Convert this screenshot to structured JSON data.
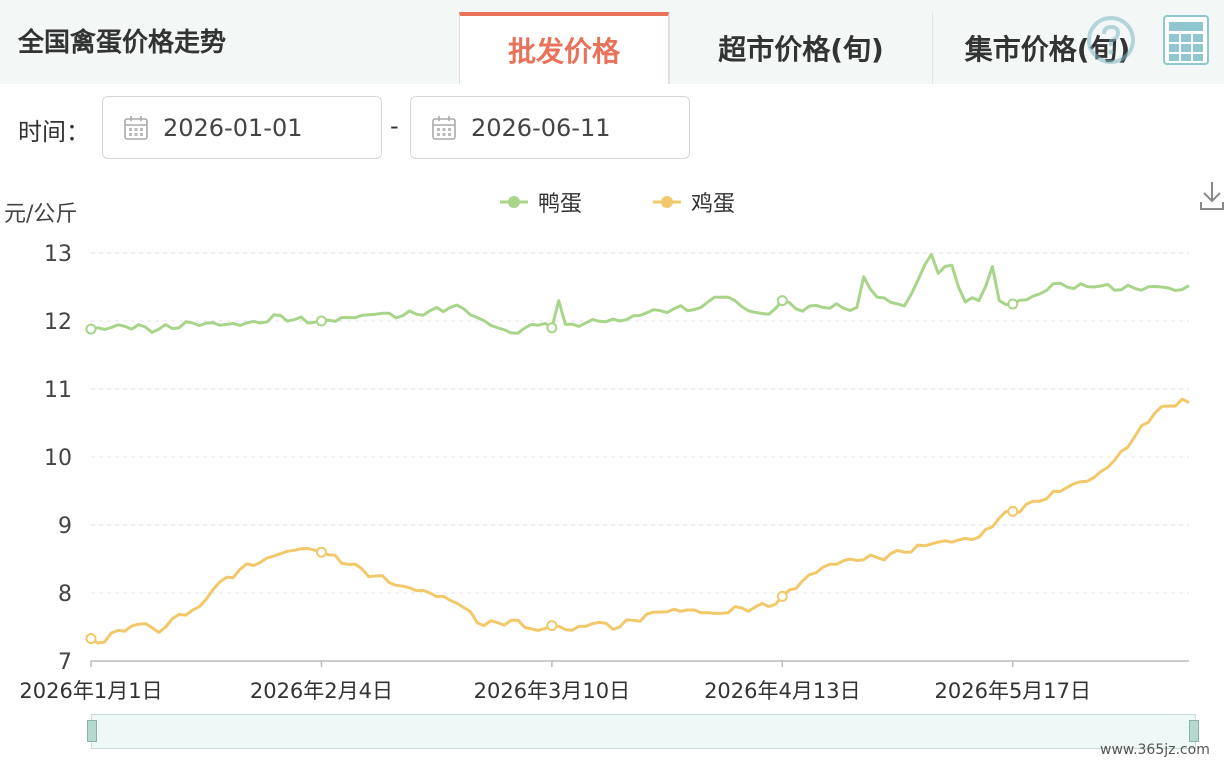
{
  "header": {
    "title": "全国禽蛋价格走势",
    "tabs": [
      {
        "label": "批发价格",
        "active": true
      },
      {
        "label": "超市价格(旬)",
        "active": false
      },
      {
        "label": "集市价格(旬)",
        "active": false
      }
    ],
    "icons": [
      "help-icon",
      "table-icon"
    ]
  },
  "filters": {
    "time_label": "时间：",
    "start_date": "2026-01-01",
    "separator": "-",
    "end_date": "2026-06-11"
  },
  "watermark": "www.365jz.com",
  "colors": {
    "accent": "#e8735a",
    "duck": "#a8d58a",
    "chicken": "#f2c96a",
    "grid": "#e3e3e3"
  },
  "chart_data": {
    "type": "line",
    "ylabel": "元/公斤",
    "ylim": [
      7,
      13
    ],
    "yticks": [
      "7",
      "8",
      "9",
      "10",
      "11",
      "12",
      "13"
    ],
    "x_tick_labels": [
      "2026年1月1日",
      "2026年2月4日",
      "2026年3月10日",
      "2026年4月13日",
      "2026年5月17日"
    ],
    "x_tick_index": [
      0,
      34,
      68,
      102,
      136
    ],
    "num_points": 163,
    "legend_position": "top-center",
    "series": [
      {
        "name": "鸭蛋",
        "color": "#a8d58a",
        "anchors": [
          [
            0,
            11.88
          ],
          [
            5,
            11.92
          ],
          [
            10,
            11.88
          ],
          [
            15,
            11.97
          ],
          [
            20,
            11.95
          ],
          [
            25,
            11.97
          ],
          [
            28,
            12.08
          ],
          [
            30,
            12.02
          ],
          [
            34,
            12.0
          ],
          [
            38,
            12.05
          ],
          [
            42,
            12.1
          ],
          [
            46,
            12.08
          ],
          [
            50,
            12.15
          ],
          [
            53,
            12.2
          ],
          [
            55,
            12.18
          ],
          [
            57,
            12.05
          ],
          [
            60,
            11.9
          ],
          [
            63,
            11.82
          ],
          [
            65,
            11.95
          ],
          [
            68,
            11.9
          ],
          [
            69,
            12.3
          ],
          [
            70,
            11.95
          ],
          [
            72,
            11.92
          ],
          [
            74,
            12.02
          ],
          [
            78,
            12.0
          ],
          [
            82,
            12.12
          ],
          [
            86,
            12.18
          ],
          [
            90,
            12.2
          ],
          [
            92,
            12.35
          ],
          [
            95,
            12.3
          ],
          [
            97,
            12.15
          ],
          [
            100,
            12.1
          ],
          [
            102,
            12.3
          ],
          [
            104,
            12.18
          ],
          [
            108,
            12.2
          ],
          [
            113,
            12.2
          ],
          [
            114,
            12.65
          ],
          [
            116,
            12.35
          ],
          [
            120,
            12.22
          ],
          [
            124,
            12.98
          ],
          [
            125,
            12.7
          ],
          [
            127,
            12.82
          ],
          [
            129,
            12.28
          ],
          [
            131,
            12.3
          ],
          [
            133,
            12.8
          ],
          [
            134,
            12.3
          ],
          [
            136,
            12.25
          ],
          [
            140,
            12.4
          ],
          [
            142,
            12.55
          ],
          [
            144,
            12.5
          ],
          [
            148,
            12.5
          ],
          [
            154,
            12.48
          ],
          [
            158,
            12.5
          ],
          [
            160,
            12.45
          ],
          [
            162,
            12.52
          ]
        ],
        "markers": [
          0,
          34,
          68,
          102,
          136
        ]
      },
      {
        "name": "鸡蛋",
        "color": "#f2c96a",
        "anchors": [
          [
            0,
            7.33
          ],
          [
            2,
            7.28
          ],
          [
            4,
            7.45
          ],
          [
            8,
            7.55
          ],
          [
            10,
            7.42
          ],
          [
            12,
            7.62
          ],
          [
            16,
            7.8
          ],
          [
            18,
            8.05
          ],
          [
            22,
            8.35
          ],
          [
            25,
            8.45
          ],
          [
            28,
            8.58
          ],
          [
            31,
            8.65
          ],
          [
            34,
            8.6
          ],
          [
            38,
            8.42
          ],
          [
            42,
            8.25
          ],
          [
            46,
            8.1
          ],
          [
            50,
            8.0
          ],
          [
            54,
            7.85
          ],
          [
            58,
            7.52
          ],
          [
            62,
            7.6
          ],
          [
            66,
            7.45
          ],
          [
            68,
            7.52
          ],
          [
            71,
            7.45
          ],
          [
            74,
            7.55
          ],
          [
            78,
            7.5
          ],
          [
            80,
            7.6
          ],
          [
            84,
            7.72
          ],
          [
            88,
            7.75
          ],
          [
            92,
            7.7
          ],
          [
            96,
            7.78
          ],
          [
            100,
            7.8
          ],
          [
            102,
            7.95
          ],
          [
            105,
            8.18
          ],
          [
            108,
            8.38
          ],
          [
            112,
            8.5
          ],
          [
            116,
            8.52
          ],
          [
            120,
            8.6
          ],
          [
            124,
            8.72
          ],
          [
            128,
            8.78
          ],
          [
            131,
            8.82
          ],
          [
            134,
            9.1
          ],
          [
            136,
            9.2
          ],
          [
            140,
            9.35
          ],
          [
            144,
            9.55
          ],
          [
            148,
            9.7
          ],
          [
            151,
            9.95
          ],
          [
            154,
            10.3
          ],
          [
            157,
            10.65
          ],
          [
            159,
            10.75
          ],
          [
            161,
            10.85
          ],
          [
            162,
            10.8
          ]
        ],
        "markers": [
          0,
          34,
          68,
          102,
          136
        ]
      }
    ]
  }
}
